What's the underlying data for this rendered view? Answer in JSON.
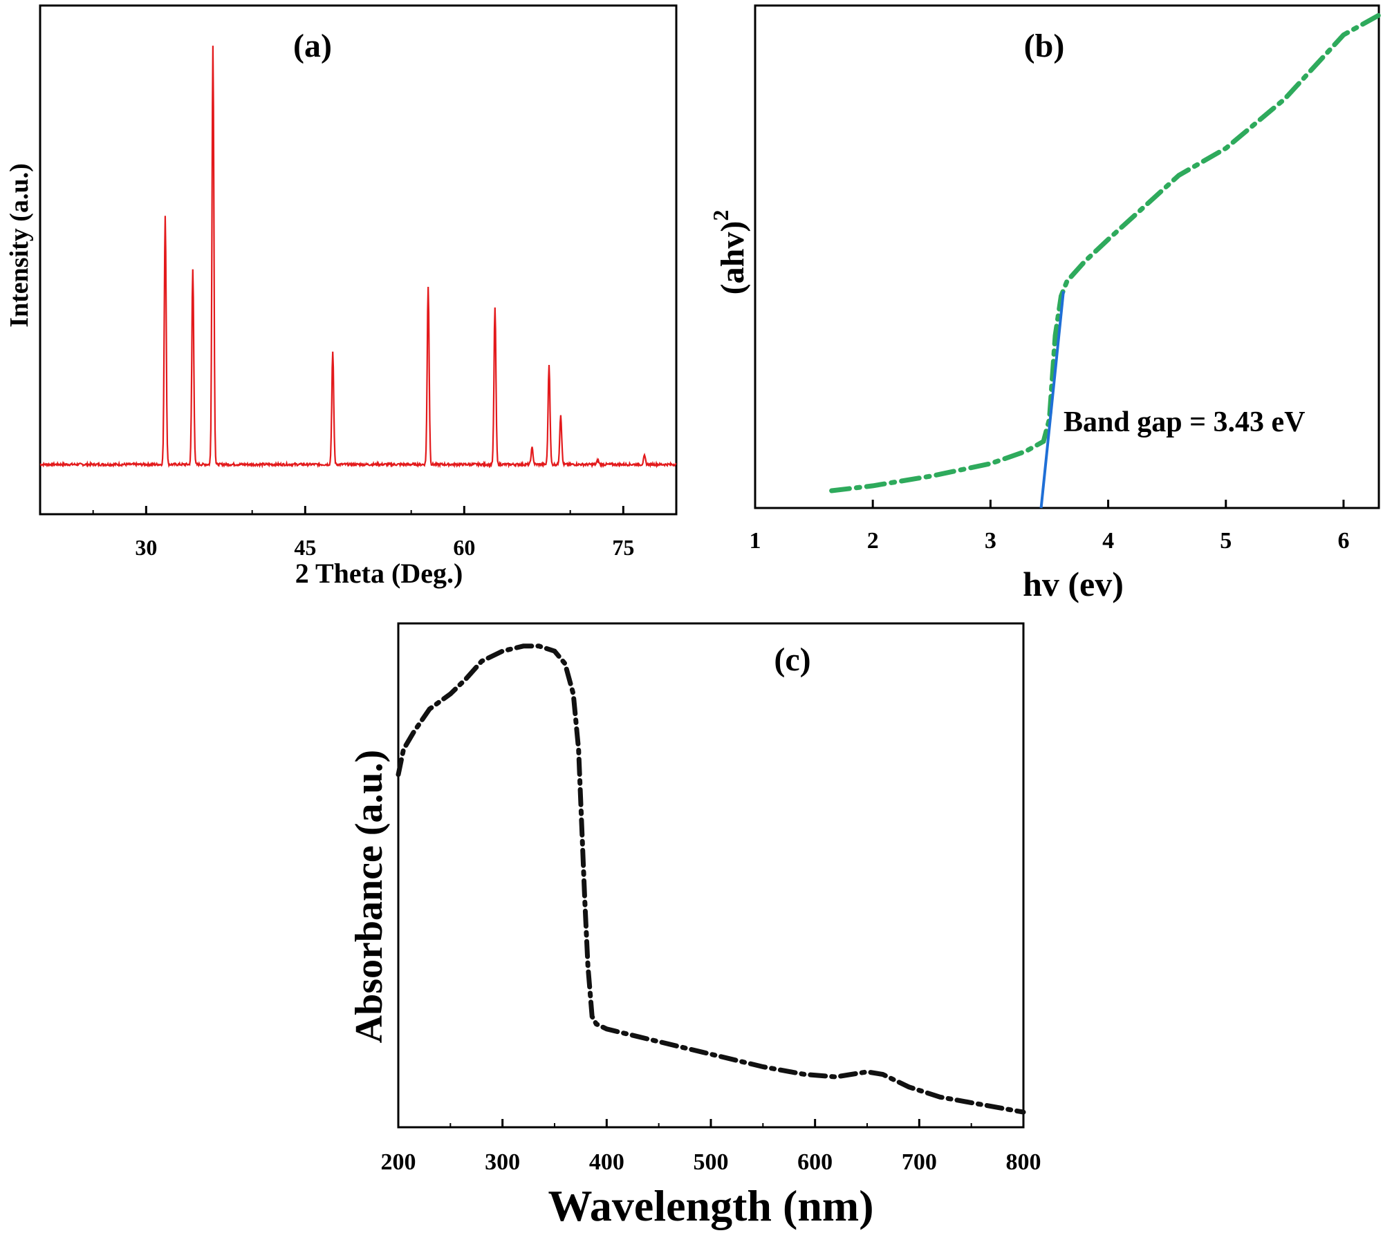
{
  "chart_data": [
    {
      "panel_label": "(a)",
      "type": "line",
      "xlabel": "2 Theta (Deg.)",
      "ylabel": "Intensity (a.u.)",
      "xlim": [
        20,
        80
      ],
      "xticks": [
        30,
        45,
        60,
        75
      ],
      "color": "#e31a1c",
      "baseline": 1.0,
      "peaks": [
        {
          "x": 31.8,
          "y": 6.0
        },
        {
          "x": 34.4,
          "y": 4.7
        },
        {
          "x": 36.3,
          "y": 10.1
        },
        {
          "x": 47.6,
          "y": 2.7
        },
        {
          "x": 56.6,
          "y": 4.3
        },
        {
          "x": 62.9,
          "y": 3.8
        },
        {
          "x": 66.4,
          "y": 0.4
        },
        {
          "x": 68.0,
          "y": 2.4
        },
        {
          "x": 69.1,
          "y": 1.2
        },
        {
          "x": 72.6,
          "y": 0.1
        },
        {
          "x": 77.0,
          "y": 0.2
        }
      ]
    },
    {
      "panel_label": "(b)",
      "type": "line",
      "xlabel": "hv (ev)",
      "ylabel": "(ahv)",
      "ylabel_sup": "2",
      "xlim": [
        1,
        6.3
      ],
      "ylim": [
        0,
        10
      ],
      "xticks": [
        1,
        2,
        3,
        4,
        5,
        6
      ],
      "annotation": "Band gap = 3.43 eV",
      "band_gap": 3.43,
      "series": [
        {
          "color": "#2eaa5c",
          "x": [
            1.65,
            2.0,
            2.5,
            3.0,
            3.3,
            3.45,
            3.5,
            3.55,
            3.6,
            3.65,
            3.8,
            4.0,
            4.3,
            4.6,
            5.0,
            5.5,
            6.0,
            6.3
          ],
          "y": [
            0.35,
            0.45,
            0.65,
            0.9,
            1.15,
            1.35,
            1.8,
            3.5,
            4.3,
            4.6,
            5.0,
            5.45,
            6.1,
            6.75,
            7.3,
            8.3,
            9.6,
            10.0
          ]
        },
        {
          "color": "#1f6fd6",
          "x": [
            3.43,
            3.62
          ],
          "y": [
            0.0,
            4.4
          ]
        }
      ]
    },
    {
      "panel_label": "(c)",
      "type": "line",
      "xlabel": "Wavelength (nm)",
      "ylabel": "Absorbance (a.u.)",
      "xlim": [
        200,
        800
      ],
      "ylim": [
        0,
        10
      ],
      "xticks": [
        200,
        300,
        400,
        500,
        600,
        700,
        800
      ],
      "series": [
        {
          "color": "#111111",
          "x": [
            200,
            205,
            215,
            230,
            250,
            265,
            280,
            300,
            320,
            335,
            350,
            360,
            368,
            373,
            376,
            379,
            382,
            386,
            390,
            400,
            430,
            470,
            510,
            550,
            590,
            620,
            650,
            665,
            690,
            720,
            760,
            800
          ],
          "y": [
            7.0,
            7.5,
            7.85,
            8.3,
            8.6,
            8.9,
            9.25,
            9.45,
            9.55,
            9.55,
            9.45,
            9.2,
            8.6,
            7.5,
            6.0,
            4.5,
            3.2,
            2.2,
            2.05,
            1.95,
            1.8,
            1.6,
            1.4,
            1.2,
            1.05,
            1.0,
            1.1,
            1.05,
            0.8,
            0.6,
            0.45,
            0.3
          ]
        }
      ]
    }
  ]
}
